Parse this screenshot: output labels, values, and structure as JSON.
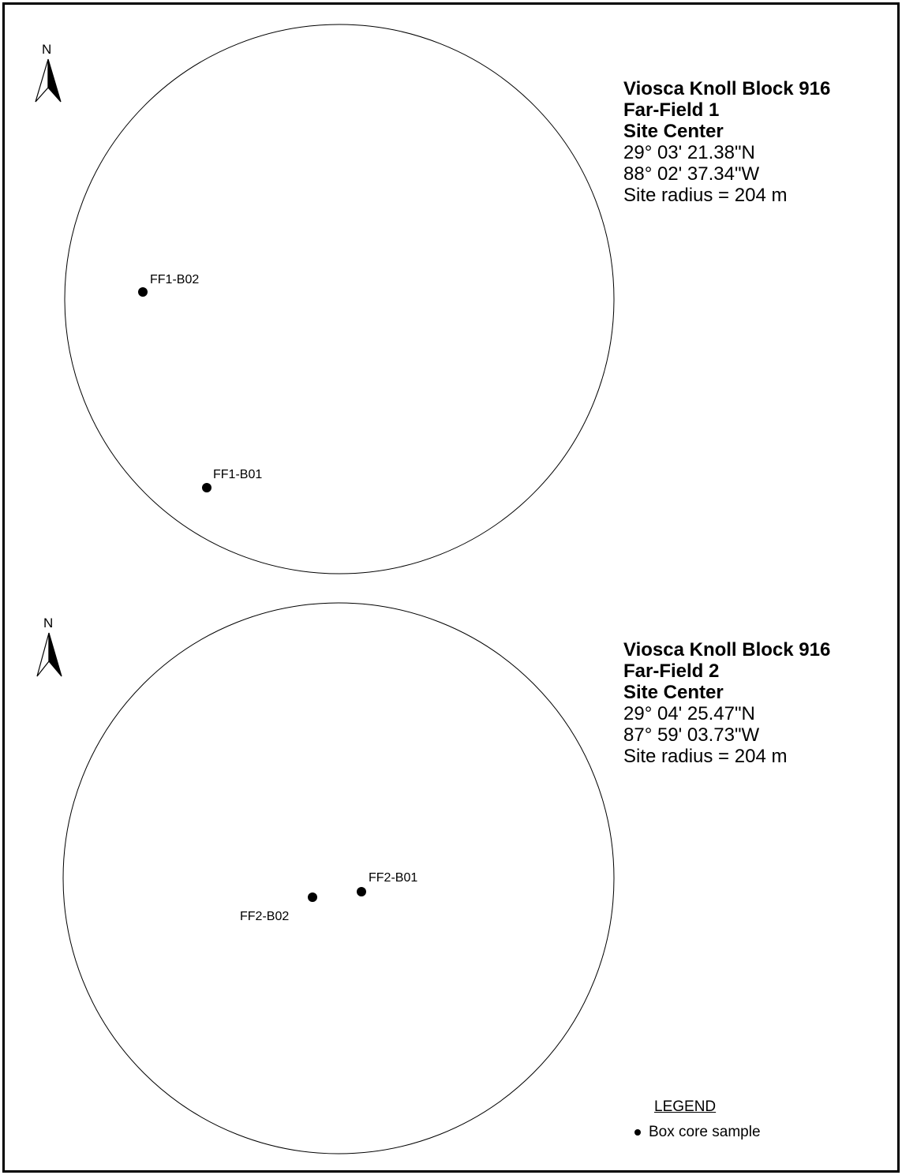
{
  "north_label": "N",
  "sites": [
    {
      "title": "Viosca Knoll Block 916",
      "field": "Far-Field 1",
      "center_label": "Site Center",
      "latitude": "29° 03' 21.38\"N",
      "longitude": "88° 02' 37.34\"W",
      "radius_text": "Site radius = 204 m",
      "samples": [
        {
          "label": "FF1-B02"
        },
        {
          "label": "FF1-B01"
        }
      ]
    },
    {
      "title": "Viosca Knoll Block 916",
      "field": "Far-Field 2",
      "center_label": "Site Center",
      "latitude": "29° 04' 25.47\"N",
      "longitude": "87° 59' 03.73\"W",
      "radius_text": "Site radius = 204 m",
      "samples": [
        {
          "label": "FF2-B01"
        },
        {
          "label": "FF2-B02"
        }
      ]
    }
  ],
  "legend": {
    "title": "LEGEND",
    "items": [
      {
        "label": "Box core sample",
        "symbol": "dot"
      }
    ]
  }
}
